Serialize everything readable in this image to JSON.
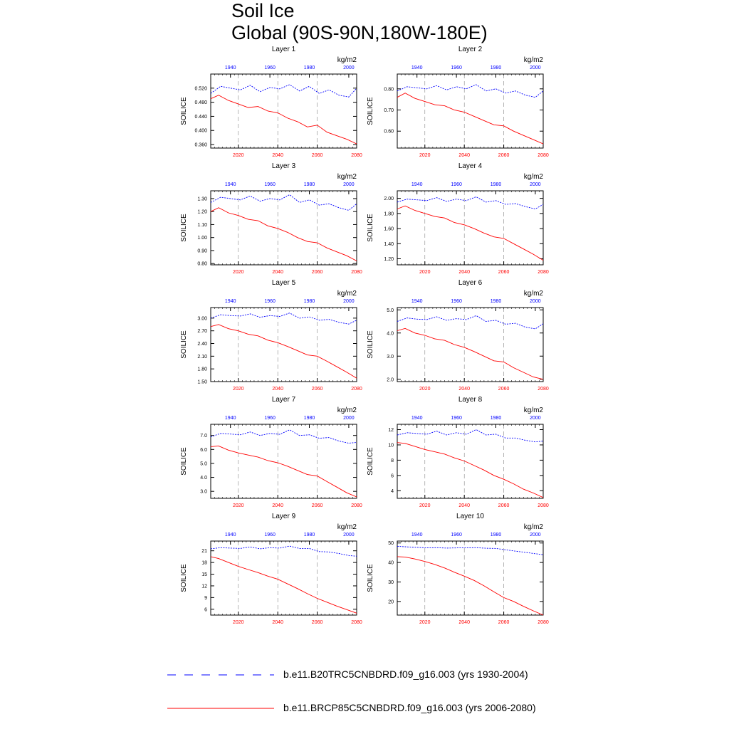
{
  "title_line1": "Soil Ice",
  "title_line2": "Global (90S-90N,180W-180E)",
  "legend": {
    "hist_label": "b.e11.B20TRC5CNBDRD.f09_g16.003 (yrs 1930-2004)",
    "future_label": "b.e11.BRCP85C5CNBDRD.f09_g16.003 (yrs 2006-2080)"
  },
  "colors": {
    "hist": "#0000ff",
    "future": "#ff0000",
    "grid": "#888888"
  },
  "chart_data": [
    {
      "type": "line",
      "title": "Layer 1",
      "units": "kg/m2",
      "ylabel": "SOILICE",
      "yticks": [
        "0.520",
        "0.480",
        "0.440",
        "0.400",
        "0.360"
      ],
      "ylim": [
        0.35,
        0.56
      ],
      "top_xticks": [
        "1940",
        "1960",
        "1980",
        "2000"
      ],
      "bottom_xticks": [
        "2020",
        "2040",
        "2060",
        "2080"
      ],
      "xlim_top": [
        1930,
        2004
      ],
      "xlim_bottom": [
        2006,
        2080
      ],
      "series": [
        {
          "name": "hist",
          "x": [
            1930,
            1935,
            1940,
            1945,
            1950,
            1955,
            1960,
            1965,
            1970,
            1975,
            1980,
            1985,
            1990,
            1995,
            2000,
            2004
          ],
          "values": [
            0.505,
            0.525,
            0.52,
            0.515,
            0.528,
            0.51,
            0.522,
            0.518,
            0.53,
            0.512,
            0.525,
            0.505,
            0.515,
            0.5,
            0.495,
            0.52
          ]
        },
        {
          "name": "future",
          "x": [
            2006,
            2010,
            2015,
            2020,
            2025,
            2030,
            2035,
            2040,
            2045,
            2050,
            2055,
            2060,
            2065,
            2070,
            2075,
            2080
          ],
          "values": [
            0.49,
            0.5,
            0.485,
            0.475,
            0.465,
            0.468,
            0.455,
            0.45,
            0.435,
            0.425,
            0.41,
            0.415,
            0.395,
            0.385,
            0.375,
            0.362
          ]
        }
      ]
    },
    {
      "type": "line",
      "title": "Layer 2",
      "units": "kg/m2",
      "ylabel": "SOILICE",
      "yticks": [
        "0.80",
        "0.70",
        "0.60"
      ],
      "ylim": [
        0.52,
        0.87
      ],
      "top_xticks": [
        "1940",
        "1960",
        "1980",
        "2000"
      ],
      "bottom_xticks": [
        "2020",
        "2040",
        "2060",
        "2080"
      ],
      "xlim_top": [
        1930,
        2004
      ],
      "xlim_bottom": [
        2006,
        2080
      ],
      "series": [
        {
          "name": "hist",
          "x": [
            1930,
            1935,
            1940,
            1945,
            1950,
            1955,
            1960,
            1965,
            1970,
            1975,
            1980,
            1985,
            1990,
            1995,
            2000,
            2004
          ],
          "values": [
            0.79,
            0.81,
            0.805,
            0.8,
            0.815,
            0.795,
            0.81,
            0.8,
            0.82,
            0.79,
            0.8,
            0.78,
            0.79,
            0.77,
            0.76,
            0.79
          ]
        },
        {
          "name": "future",
          "x": [
            2006,
            2010,
            2015,
            2020,
            2025,
            2030,
            2035,
            2040,
            2045,
            2050,
            2055,
            2060,
            2065,
            2070,
            2075,
            2080
          ],
          "values": [
            0.76,
            0.78,
            0.755,
            0.74,
            0.725,
            0.72,
            0.7,
            0.69,
            0.67,
            0.65,
            0.63,
            0.625,
            0.6,
            0.58,
            0.56,
            0.54
          ]
        }
      ]
    },
    {
      "type": "line",
      "title": "Layer 3",
      "units": "kg/m2",
      "ylabel": "SOILICE",
      "yticks": [
        "1.30",
        "1.20",
        "1.10",
        "1.00",
        "0.90",
        "0.80"
      ],
      "ylim": [
        0.79,
        1.36
      ],
      "top_xticks": [
        "1940",
        "1960",
        "1980",
        "2000"
      ],
      "bottom_xticks": [
        "2020",
        "2040",
        "2060",
        "2080"
      ],
      "xlim_top": [
        1930,
        2004
      ],
      "xlim_bottom": [
        2006,
        2080
      ],
      "series": [
        {
          "name": "hist",
          "x": [
            1930,
            1935,
            1940,
            1945,
            1950,
            1955,
            1960,
            1965,
            1970,
            1975,
            1980,
            1985,
            1990,
            1995,
            2000,
            2004
          ],
          "values": [
            1.27,
            1.31,
            1.3,
            1.29,
            1.32,
            1.28,
            1.3,
            1.29,
            1.33,
            1.27,
            1.29,
            1.25,
            1.26,
            1.23,
            1.21,
            1.26
          ]
        },
        {
          "name": "future",
          "x": [
            2006,
            2010,
            2015,
            2020,
            2025,
            2030,
            2035,
            2040,
            2045,
            2050,
            2055,
            2060,
            2065,
            2070,
            2075,
            2080
          ],
          "values": [
            1.2,
            1.23,
            1.19,
            1.17,
            1.14,
            1.13,
            1.09,
            1.07,
            1.04,
            1.0,
            0.97,
            0.96,
            0.92,
            0.89,
            0.86,
            0.82
          ]
        }
      ]
    },
    {
      "type": "line",
      "title": "Layer 4",
      "units": "kg/m2",
      "ylabel": "SOILICE",
      "yticks": [
        "2.00",
        "1.80",
        "1.60",
        "1.40",
        "1.20"
      ],
      "ylim": [
        1.12,
        2.1
      ],
      "top_xticks": [
        "1940",
        "1960",
        "1980",
        "2000"
      ],
      "bottom_xticks": [
        "2020",
        "2040",
        "2060",
        "2080"
      ],
      "xlim_top": [
        1930,
        2004
      ],
      "xlim_bottom": [
        2006,
        2080
      ],
      "series": [
        {
          "name": "hist",
          "x": [
            1930,
            1935,
            1940,
            1945,
            1950,
            1955,
            1960,
            1965,
            1970,
            1975,
            1980,
            1985,
            1990,
            1995,
            2000,
            2004
          ],
          "values": [
            1.95,
            1.99,
            1.98,
            1.97,
            2.01,
            1.96,
            1.99,
            1.97,
            2.02,
            1.95,
            1.97,
            1.92,
            1.93,
            1.89,
            1.86,
            1.92
          ]
        },
        {
          "name": "future",
          "x": [
            2006,
            2010,
            2015,
            2020,
            2025,
            2030,
            2035,
            2040,
            2045,
            2050,
            2055,
            2060,
            2065,
            2070,
            2075,
            2080
          ],
          "values": [
            1.86,
            1.9,
            1.84,
            1.8,
            1.76,
            1.74,
            1.68,
            1.65,
            1.6,
            1.54,
            1.49,
            1.47,
            1.4,
            1.33,
            1.26,
            1.18
          ]
        }
      ]
    },
    {
      "type": "line",
      "title": "Layer 5",
      "units": "kg/m2",
      "ylabel": "SOILICE",
      "yticks": [
        "3.00",
        "2.70",
        "2.40",
        "2.10",
        "1.80",
        "1.50"
      ],
      "ylim": [
        1.5,
        3.25
      ],
      "top_xticks": [
        "1940",
        "1960",
        "1980",
        "2000"
      ],
      "bottom_xticks": [
        "2020",
        "2040",
        "2060",
        "2080"
      ],
      "xlim_top": [
        1930,
        2004
      ],
      "xlim_bottom": [
        2006,
        2080
      ],
      "series": [
        {
          "name": "hist",
          "x": [
            1930,
            1935,
            1940,
            1945,
            1950,
            1955,
            1960,
            1965,
            1970,
            1975,
            1980,
            1985,
            1990,
            1995,
            2000,
            2004
          ],
          "values": [
            3.0,
            3.08,
            3.06,
            3.05,
            3.1,
            3.02,
            3.06,
            3.04,
            3.12,
            3.0,
            3.03,
            2.95,
            2.97,
            2.9,
            2.86,
            2.95
          ]
        },
        {
          "name": "future",
          "x": [
            2006,
            2010,
            2015,
            2020,
            2025,
            2030,
            2035,
            2040,
            2045,
            2050,
            2055,
            2060,
            2065,
            2070,
            2075,
            2080
          ],
          "values": [
            2.8,
            2.85,
            2.75,
            2.7,
            2.62,
            2.58,
            2.48,
            2.42,
            2.33,
            2.23,
            2.13,
            2.1,
            1.98,
            1.85,
            1.72,
            1.58
          ]
        }
      ]
    },
    {
      "type": "line",
      "title": "Layer 6",
      "units": "kg/m2",
      "ylabel": "SOILICE",
      "yticks": [
        "5.0",
        "4.0",
        "3.0",
        "2.0"
      ],
      "ylim": [
        1.9,
        5.1
      ],
      "top_xticks": [
        "1940",
        "1960",
        "1980",
        "2000"
      ],
      "bottom_xticks": [
        "2020",
        "2040",
        "2060",
        "2080"
      ],
      "xlim_top": [
        1930,
        2004
      ],
      "xlim_bottom": [
        2006,
        2080
      ],
      "series": [
        {
          "name": "hist",
          "x": [
            1930,
            1935,
            1940,
            1945,
            1950,
            1955,
            1960,
            1965,
            1970,
            1975,
            1980,
            1985,
            1990,
            1995,
            2000,
            2004
          ],
          "values": [
            4.5,
            4.65,
            4.6,
            4.58,
            4.7,
            4.55,
            4.62,
            4.58,
            4.75,
            4.5,
            4.55,
            4.38,
            4.42,
            4.25,
            4.18,
            4.4
          ]
        },
        {
          "name": "future",
          "x": [
            2006,
            2010,
            2015,
            2020,
            2025,
            2030,
            2035,
            2040,
            2045,
            2050,
            2055,
            2060,
            2065,
            2070,
            2075,
            2080
          ],
          "values": [
            4.1,
            4.2,
            4.0,
            3.9,
            3.75,
            3.68,
            3.5,
            3.38,
            3.2,
            3.0,
            2.8,
            2.75,
            2.5,
            2.3,
            2.1,
            2.0
          ]
        }
      ]
    },
    {
      "type": "line",
      "title": "Layer 7",
      "units": "kg/m2",
      "ylabel": "SOILICE",
      "yticks": [
        "7.0",
        "6.0",
        "5.0",
        "4.0",
        "3.0"
      ],
      "ylim": [
        2.5,
        7.8
      ],
      "top_xticks": [
        "1940",
        "1960",
        "1980",
        "2000"
      ],
      "bottom_xticks": [
        "2020",
        "2040",
        "2060",
        "2080"
      ],
      "xlim_top": [
        1930,
        2004
      ],
      "xlim_bottom": [
        2006,
        2080
      ],
      "series": [
        {
          "name": "hist",
          "x": [
            1930,
            1935,
            1940,
            1945,
            1950,
            1955,
            1960,
            1965,
            1970,
            1975,
            1980,
            1985,
            1990,
            1995,
            2000,
            2004
          ],
          "values": [
            6.9,
            7.15,
            7.1,
            7.05,
            7.25,
            7.0,
            7.15,
            7.08,
            7.4,
            7.0,
            7.05,
            6.8,
            6.85,
            6.6,
            6.45,
            6.5
          ]
        },
        {
          "name": "future",
          "x": [
            2006,
            2010,
            2015,
            2020,
            2025,
            2030,
            2035,
            2040,
            2045,
            2050,
            2055,
            2060,
            2065,
            2070,
            2075,
            2080
          ],
          "values": [
            6.2,
            6.25,
            5.95,
            5.75,
            5.6,
            5.45,
            5.2,
            5.05,
            4.8,
            4.5,
            4.2,
            4.1,
            3.7,
            3.3,
            2.9,
            2.6
          ]
        }
      ]
    },
    {
      "type": "line",
      "title": "Layer 8",
      "units": "kg/m2",
      "ylabel": "SOILICE",
      "yticks": [
        "12",
        "10",
        "8",
        "6",
        "4"
      ],
      "ylim": [
        3.0,
        12.7
      ],
      "top_xticks": [
        "1940",
        "1960",
        "1980",
        "2000"
      ],
      "bottom_xticks": [
        "2020",
        "2040",
        "2060",
        "2080"
      ],
      "xlim_top": [
        1930,
        2004
      ],
      "xlim_bottom": [
        2006,
        2080
      ],
      "series": [
        {
          "name": "hist",
          "x": [
            1930,
            1935,
            1940,
            1945,
            1950,
            1955,
            1960,
            1965,
            1970,
            1975,
            1980,
            1985,
            1990,
            1995,
            2000,
            2004
          ],
          "values": [
            11.3,
            11.6,
            11.5,
            11.4,
            11.8,
            11.3,
            11.6,
            11.4,
            12.0,
            11.3,
            11.4,
            10.9,
            10.9,
            10.6,
            10.4,
            10.5
          ]
        },
        {
          "name": "future",
          "x": [
            2006,
            2010,
            2015,
            2020,
            2025,
            2030,
            2035,
            2040,
            2045,
            2050,
            2055,
            2060,
            2065,
            2070,
            2075,
            2080
          ],
          "values": [
            10.3,
            10.2,
            9.8,
            9.4,
            9.1,
            8.8,
            8.3,
            7.9,
            7.3,
            6.7,
            6.0,
            5.5,
            4.9,
            4.2,
            3.7,
            3.1
          ]
        }
      ]
    },
    {
      "type": "line",
      "title": "Layer 9",
      "units": "kg/m2",
      "ylabel": "SOILICE",
      "yticks": [
        "21",
        "18",
        "15",
        "12",
        "9",
        "6"
      ],
      "ylim": [
        4.5,
        23.5
      ],
      "top_xticks": [
        "1940",
        "1960",
        "1980",
        "2000"
      ],
      "bottom_xticks": [
        "2020",
        "2040",
        "2060",
        "2080"
      ],
      "xlim_top": [
        1930,
        2004
      ],
      "xlim_bottom": [
        2006,
        2080
      ],
      "series": [
        {
          "name": "hist",
          "x": [
            1930,
            1935,
            1940,
            1945,
            1950,
            1955,
            1960,
            1965,
            1970,
            1975,
            1980,
            1985,
            1990,
            1995,
            2000,
            2004
          ],
          "values": [
            21.5,
            21.8,
            21.7,
            21.6,
            22.0,
            21.5,
            21.8,
            21.7,
            22.2,
            21.6,
            21.6,
            20.8,
            20.7,
            20.3,
            19.8,
            19.6
          ]
        },
        {
          "name": "future",
          "x": [
            2006,
            2010,
            2015,
            2020,
            2025,
            2030,
            2035,
            2040,
            2045,
            2050,
            2055,
            2060,
            2065,
            2070,
            2075,
            2080
          ],
          "values": [
            19.5,
            19.0,
            18.0,
            17.0,
            16.2,
            15.4,
            14.5,
            13.7,
            12.5,
            11.3,
            10.0,
            8.8,
            7.8,
            6.8,
            5.9,
            5.0
          ]
        }
      ]
    },
    {
      "type": "line",
      "title": "Layer 10",
      "units": "kg/m2",
      "ylabel": "SOILICE",
      "yticks": [
        "50",
        "40",
        "30",
        "20"
      ],
      "ylim": [
        13.0,
        51.0
      ],
      "top_xticks": [
        "1940",
        "1960",
        "1980",
        "2000"
      ],
      "bottom_xticks": [
        "2020",
        "2040",
        "2060",
        "2080"
      ],
      "xlim_top": [
        1930,
        2004
      ],
      "xlim_bottom": [
        2006,
        2080
      ],
      "series": [
        {
          "name": "hist",
          "x": [
            1930,
            1935,
            1940,
            1945,
            1950,
            1955,
            1960,
            1965,
            1970,
            1975,
            1980,
            1985,
            1990,
            1995,
            2000,
            2004
          ],
          "values": [
            48.3,
            48.0,
            47.8,
            47.5,
            47.6,
            47.4,
            47.5,
            47.5,
            47.6,
            47.3,
            47.2,
            46.5,
            45.8,
            45.2,
            44.5,
            44.0
          ]
        },
        {
          "name": "future",
          "x": [
            2006,
            2010,
            2015,
            2020,
            2025,
            2030,
            2035,
            2040,
            2045,
            2050,
            2055,
            2060,
            2065,
            2070,
            2075,
            2080
          ],
          "values": [
            43.0,
            42.8,
            41.8,
            40.5,
            39.0,
            37.2,
            35.0,
            33.0,
            30.8,
            28.0,
            25.0,
            22.0,
            20.0,
            17.5,
            15.2,
            13.0
          ]
        }
      ]
    }
  ]
}
